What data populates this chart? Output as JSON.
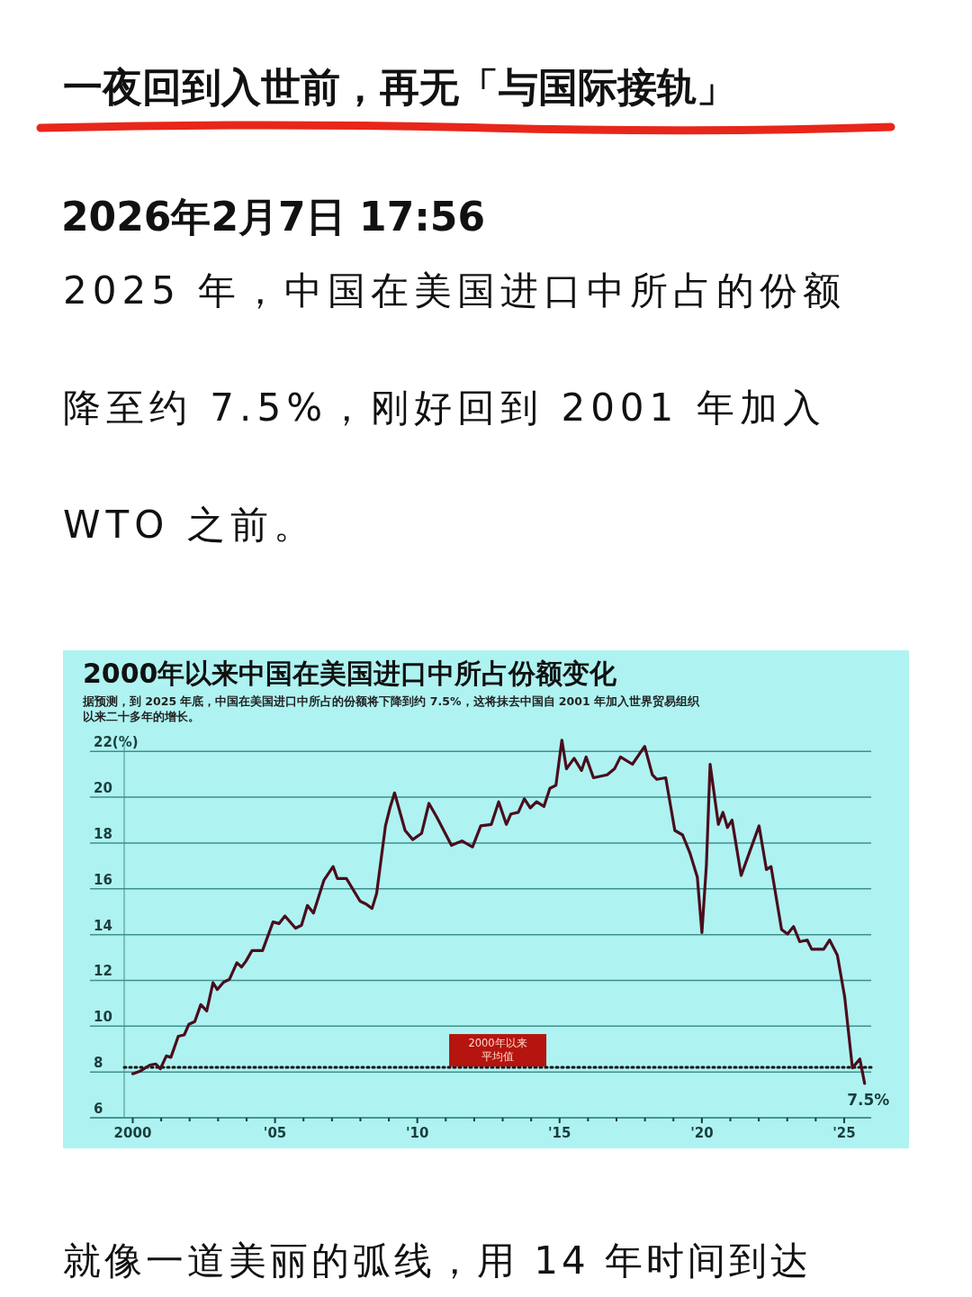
{
  "chart_data": {
    "type": "line",
    "title": "2000年以来中国在美国进口中所占份额变化",
    "subtitle": "据预测，到 2025 年底，中国在美国进口中所占的份额将下降到约 7.5%，这将抹去中国自 2001 年加入世界贸易组织以来二十多年的增长。",
    "annotations": [
      "一夜回到入世前，再无「与国际接轨」",
      "2026年2月7日 17:56",
      "2025 年，中国在美国进口中所占的份额降至约 7.5%，刚好回到 2001 年加入 WTO 之前。",
      {
        "text": "7.5%",
        "x": 2025.72,
        "y": 7.5
      },
      "就像一道美丽的弧线，用 14 年时间到达"
    ],
    "xlim": [
      1999.7,
      2025.95
    ],
    "xticks": [
      {
        "value": 2000,
        "label": "2000"
      },
      {
        "value": 2001,
        "label": null
      },
      {
        "value": 2002,
        "label": null
      },
      {
        "value": 2003,
        "label": null
      },
      {
        "value": 2004,
        "label": null
      },
      {
        "value": 2005,
        "label": "'05"
      },
      {
        "value": 2006,
        "label": null
      },
      {
        "value": 2007,
        "label": null
      },
      {
        "value": 2008,
        "label": null
      },
      {
        "value": 2009,
        "label": null
      },
      {
        "value": 2010,
        "label": "'10"
      },
      {
        "value": 2011,
        "label": null
      },
      {
        "value": 2012,
        "label": null
      },
      {
        "value": 2013,
        "label": null
      },
      {
        "value": 2014,
        "label": null
      },
      {
        "value": 2015,
        "label": "'15"
      },
      {
        "value": 2016,
        "label": null
      },
      {
        "value": 2017,
        "label": null
      },
      {
        "value": 2018,
        "label": null
      },
      {
        "value": 2019,
        "label": null
      },
      {
        "value": 2020,
        "label": "'20"
      },
      {
        "value": 2021,
        "label": null
      },
      {
        "value": 2022,
        "label": null
      },
      {
        "value": 2023,
        "label": null
      },
      {
        "value": 2024,
        "label": null
      },
      {
        "value": 2025,
        "label": "'25"
      }
    ],
    "ylim": [
      6,
      22.6
    ],
    "yticks": [
      6,
      8,
      10,
      12,
      14,
      16,
      18,
      20,
      {
        "value": 22,
        "label": "22(%)"
      }
    ],
    "grid": "y",
    "ref_lines": [
      {
        "axis": "y",
        "value": 8.2,
        "label": "2000年以来平均值",
        "color": "#111111",
        "line_style": "dotted"
      }
    ],
    "series": [
      {
        "color": "#4a0d1c",
        "x": [
          2000.0,
          2000.28,
          2000.6,
          2000.81,
          2000.97,
          2001.18,
          2001.34,
          2001.6,
          2001.81,
          2001.97,
          2002.18,
          2002.39,
          2002.6,
          2002.82,
          2002.97,
          2003.19,
          2003.4,
          2003.66,
          2003.82,
          2003.98,
          2004.19,
          2004.56,
          2004.93,
          2005.14,
          2005.35,
          2005.72,
          2005.93,
          2006.14,
          2006.35,
          2006.72,
          2007.04,
          2007.19,
          2007.51,
          2007.99,
          2008.2,
          2008.41,
          2008.57,
          2008.88,
          2009.04,
          2009.2,
          2009.57,
          2009.84,
          2010.15,
          2010.41,
          2010.68,
          2011.2,
          2011.57,
          2011.94,
          2012.23,
          2012.6,
          2012.86,
          2013.13,
          2013.29,
          2013.55,
          2013.76,
          2013.97,
          2014.19,
          2014.45,
          2014.66,
          2014.87,
          2015.08,
          2015.24,
          2015.51,
          2015.77,
          2015.93,
          2016.19,
          2016.67,
          2016.93,
          2017.14,
          2017.56,
          2017.99,
          2018.26,
          2018.42,
          2018.73,
          2019.05,
          2019.32,
          2019.58,
          2019.84,
          2020.0,
          2020.16,
          2020.29,
          2020.58,
          2020.74,
          2020.9,
          2021.06,
          2021.38,
          2022.01,
          2022.27,
          2022.43,
          2022.8,
          2023.01,
          2023.22,
          2023.44,
          2023.7,
          2023.86,
          2024.28,
          2024.49,
          2024.76,
          2025.02,
          2025.29,
          2025.55,
          2025.72
        ],
        "values": [
          7.92,
          8.05,
          8.3,
          8.35,
          8.14,
          8.7,
          8.64,
          9.56,
          9.62,
          10.08,
          10.2,
          10.94,
          10.67,
          11.9,
          11.6,
          11.92,
          12.05,
          12.77,
          12.58,
          12.84,
          13.3,
          13.3,
          14.55,
          14.48,
          14.81,
          14.28,
          14.41,
          15.27,
          14.94,
          16.38,
          16.97,
          16.45,
          16.45,
          15.46,
          15.33,
          15.14,
          15.8,
          18.75,
          19.53,
          20.19,
          18.55,
          18.15,
          18.42,
          19.73,
          19.14,
          17.9,
          18.09,
          17.83,
          18.75,
          18.81,
          19.8,
          18.81,
          19.27,
          19.34,
          19.93,
          19.53,
          19.8,
          19.6,
          20.39,
          20.52,
          22.49,
          21.24,
          21.7,
          21.17,
          21.76,
          20.85,
          20.98,
          21.24,
          21.76,
          21.44,
          22.22,
          20.98,
          20.78,
          20.85,
          18.55,
          18.35,
          17.56,
          16.51,
          14.09,
          17.04,
          21.44,
          18.81,
          19.34,
          18.68,
          19.0,
          16.58,
          18.75,
          16.84,
          16.97,
          14.22,
          14.02,
          14.35,
          13.69,
          13.76,
          13.36,
          13.36,
          13.76,
          13.1,
          11.26,
          8.18,
          8.57,
          7.5
        ]
      }
    ]
  }
}
